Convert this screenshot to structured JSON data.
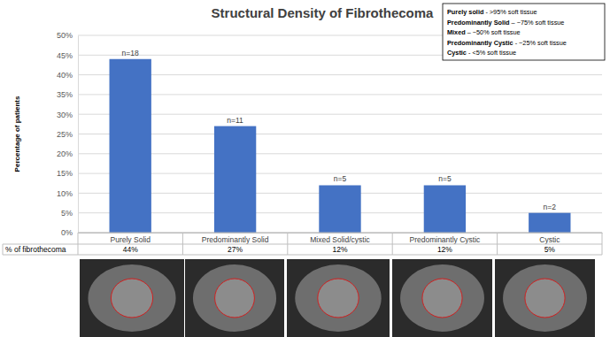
{
  "chart_data": {
    "type": "bar",
    "title": "Structural Density of Fibrothecoma",
    "y_label": "Percentage of patients",
    "categories": [
      "Purely Solid",
      "Predominantly Solid",
      "Mixed Solid/cystic",
      "Predominantly Cystic",
      "Cystic"
    ],
    "values": [
      44,
      27,
      12,
      12,
      5
    ],
    "bar_labels": [
      "n=18",
      "n=11",
      "n=5",
      "n=5",
      "n=2"
    ],
    "color": "#4472c4",
    "ylim": [
      0,
      50
    ],
    "yticks": [
      {
        "value": 0,
        "label": "0%"
      },
      {
        "value": 5,
        "label": "5%"
      },
      {
        "value": 10,
        "label": "10%"
      },
      {
        "value": 15,
        "label": "15%"
      },
      {
        "value": 20,
        "label": "20%"
      },
      {
        "value": 25,
        "label": "25%"
      },
      {
        "value": 30,
        "label": "30%"
      },
      {
        "value": 35,
        "label": "35%"
      },
      {
        "value": 40,
        "label": "40%"
      },
      {
        "value": 45,
        "label": "45%"
      },
      {
        "value": 50,
        "label": "50%"
      }
    ],
    "grid": true,
    "table": {
      "row_label": "% of fibrothecoma",
      "cells": [
        "44%",
        "27%",
        "12%",
        "12%",
        "5%"
      ]
    },
    "definitions": [
      {
        "term": "Purely solid",
        "description": " - >95% soft tissue"
      },
      {
        "term": "Predominantly Solid",
        "description": " – ~75% soft tissue"
      },
      {
        "term": "Mixed",
        "description": " – ~50% soft tissue"
      },
      {
        "term": "Predominantly Cystic",
        "description": " - ~25% soft tissue"
      },
      {
        "term": "Cystic",
        "description": " - <5% soft tissue"
      }
    ]
  }
}
